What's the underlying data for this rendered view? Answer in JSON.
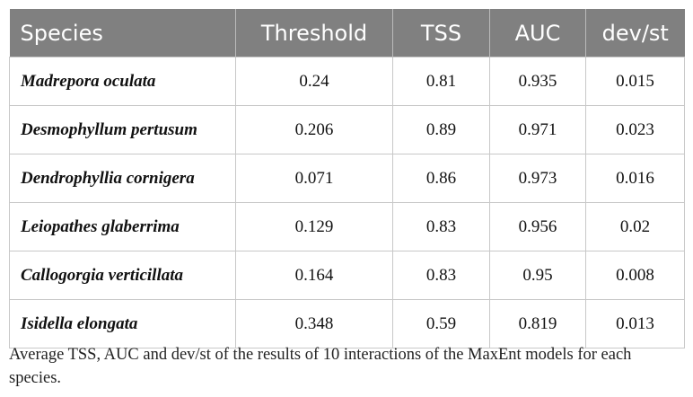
{
  "table": {
    "header": [
      "Species",
      "Threshold",
      "TSS",
      "AUC",
      "dev/st"
    ],
    "rows": [
      [
        "Madrepora oculata",
        0.24,
        0.81,
        0.935,
        0.015
      ],
      [
        "Desmophyllum pertusum",
        0.206,
        0.89,
        0.971,
        0.023
      ],
      [
        "Dendrophyllia cornigera",
        0.071,
        0.86,
        0.973,
        0.016
      ],
      [
        "Leiopathes glaberrima",
        0.129,
        0.83,
        0.956,
        0.02
      ],
      [
        "Callogorgia verticillata",
        0.164,
        0.83,
        0.95,
        0.008
      ],
      [
        "Isidella elongata",
        0.348,
        0.59,
        0.819,
        0.013
      ]
    ]
  },
  "caption": "Average TSS, AUC and dev/st of the results of 10 interactions of the MaxEnt models for each species."
}
